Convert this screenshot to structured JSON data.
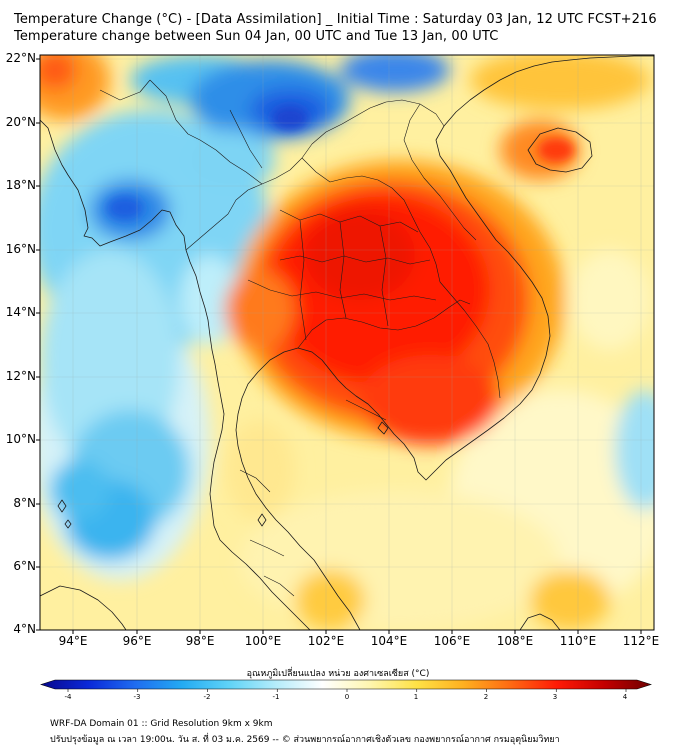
{
  "title_line1": "Temperature Change (°C) - [Data Assimilation] _ Initial Time : Saturday 03 Jan, 12 UTC FCST+216",
  "title_line2": "Temperature change between Sun 04 Jan, 00 UTC and Tue 13 Jan, 00 UTC",
  "lat_labels": [
    "22°N",
    "20°N",
    "18°N",
    "16°N",
    "14°N",
    "12°N",
    "10°N",
    "8°N",
    "6°N",
    "4°N"
  ],
  "lon_labels": [
    "94°E",
    "96°E",
    "98°E",
    "100°E",
    "102°E",
    "104°E",
    "106°E",
    "108°E",
    "110°E",
    "112°E"
  ],
  "colorbar": {
    "title": "อุณหภูมิเปลี่ยนแปลง หน่วย องศาเซลเซียส (°C)",
    "ticks": [
      "-4",
      "-3",
      "-2",
      "-1",
      "0",
      "1",
      "2",
      "3",
      "4"
    ],
    "colors": [
      "#08088c",
      "#0a28d8",
      "#1f6cf0",
      "#23aaf2",
      "#5fd3f7",
      "#b4ecfa",
      "#ffffff",
      "#fff6b0",
      "#ffe246",
      "#ffb020",
      "#ff6a12",
      "#ff1a06",
      "#c40000",
      "#6e0000"
    ]
  },
  "footer_line1": "WRF-DA Domain 01 :: Grid Resolution 9km x 9km",
  "footer_line2": "ปรับปรุงข้อมูล ณ เวลา 19:00น. วัน ส. ที่ 03 ม.ค. 2569 -- © ส่วนพยากรณ์อากาศเชิงตัวเลข กองพยากรณ์อากาศ กรมอุตุนิยมวิทยา",
  "colors": {
    "background_field": "#fff1a8",
    "warm": "#ff2a08",
    "cool": "#3aa7f0"
  }
}
